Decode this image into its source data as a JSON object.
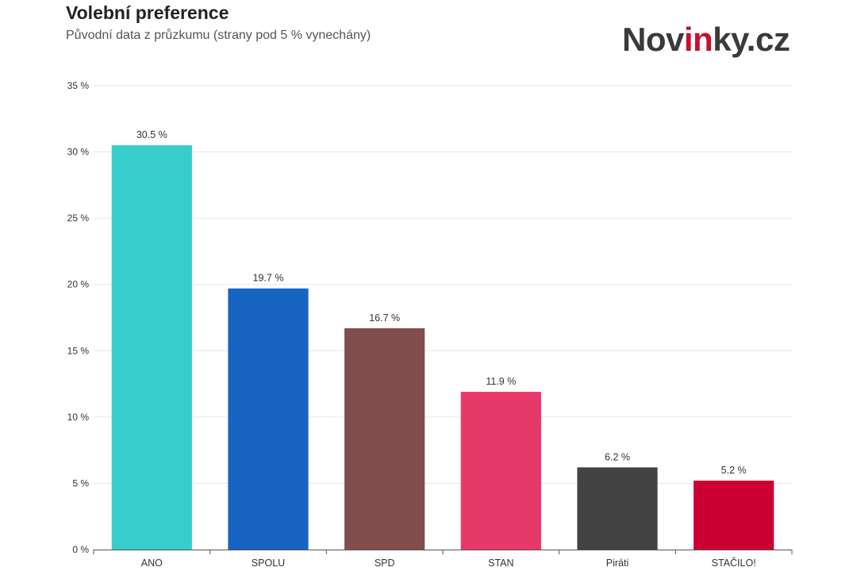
{
  "header": {
    "title": "Volební preference",
    "subtitle": "Původní data z průzkumu (strany pod 5 % vynechány)"
  },
  "brand": {
    "logo_text": "Novinky.cz",
    "logo_parts": [
      "Nov",
      "in",
      "ky.cz"
    ]
  },
  "chart_data": {
    "type": "bar",
    "categories": [
      "ANO",
      "SPOLU",
      "SPD",
      "STAN",
      "Piráti",
      "STAČILO!"
    ],
    "values": [
      30.5,
      19.7,
      16.7,
      11.9,
      6.2,
      5.2
    ],
    "data_labels": [
      "30.5 %",
      "19.7 %",
      "16.7 %",
      "11.9 %",
      "6.2 %",
      "5.2 %"
    ],
    "colors": [
      "#36cdcc",
      "#1864c3",
      "#834d4e",
      "#e73967",
      "#434343",
      "#cc0033"
    ],
    "title": "Volební preference",
    "subtitle": "Původní data z průzkumu (strany pod 5 % vynechány)",
    "xlabel": "",
    "ylabel": "",
    "ylim": [
      0,
      35
    ],
    "yticks": [
      0,
      5,
      10,
      15,
      20,
      25,
      30,
      35
    ],
    "ytick_labels": [
      "0 %",
      "5 %",
      "10 %",
      "15 %",
      "20 %",
      "25 %",
      "30 %",
      "35 %"
    ],
    "grid": true,
    "legend": "none"
  }
}
